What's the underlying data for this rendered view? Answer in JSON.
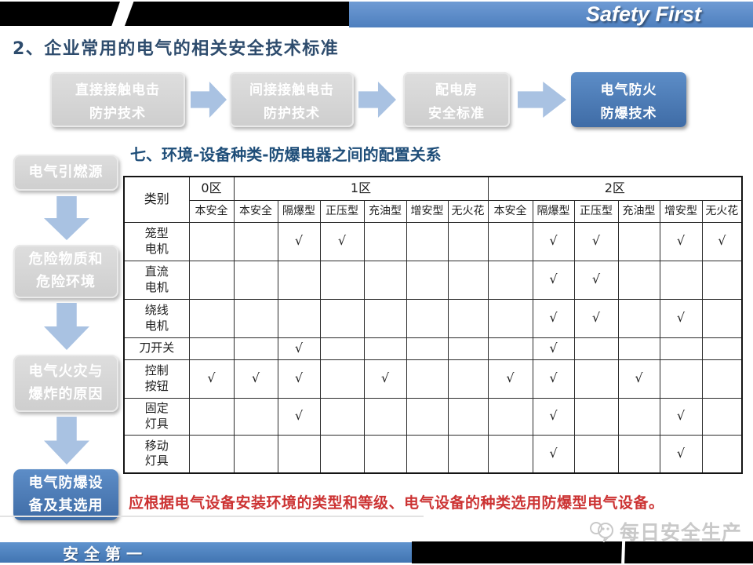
{
  "header": {
    "brand": "Safety First",
    "title": "2、企业常用的电气的相关安全技术标准"
  },
  "flow_steps": [
    {
      "lines": [
        "直接接触电击",
        "防护技术"
      ],
      "highlighted": false
    },
    {
      "lines": [
        "间接接触电击",
        "防护技术"
      ],
      "highlighted": false
    },
    {
      "lines": [
        "配电房",
        "安全标准"
      ],
      "highlighted": false
    },
    {
      "lines": [
        "电气防火",
        "防爆技术"
      ],
      "highlighted": true
    }
  ],
  "sidebar_steps": [
    {
      "lines": [
        "电气引燃源"
      ],
      "highlighted": false
    },
    {
      "lines": [
        "危险物质和",
        "危险环境"
      ],
      "highlighted": false
    },
    {
      "lines": [
        "电气火灾与",
        "爆炸的原因"
      ],
      "highlighted": false
    },
    {
      "lines": [
        "电气防爆设",
        "备及其选用"
      ],
      "highlighted": true
    }
  ],
  "section": {
    "title": "七、环境-设备种类-防爆电器之间的配置关系"
  },
  "table": {
    "corner": "类别",
    "zones": [
      {
        "label": "0区",
        "span": 1
      },
      {
        "label": "1区",
        "span": 6
      },
      {
        "label": "2区",
        "span": 6
      }
    ],
    "subheaders": [
      "本安全",
      "本安全",
      "隔爆型",
      "正压型",
      "充油型",
      "增安型",
      "无火花",
      "本安全",
      "隔爆型",
      "正压型",
      "充油型",
      "增安型",
      "无火花"
    ],
    "check_symbol": "√",
    "rows": [
      {
        "label_lines": [
          "笼型",
          "电机"
        ],
        "checks": [
          0,
          0,
          1,
          1,
          0,
          0,
          0,
          0,
          1,
          1,
          0,
          1,
          1
        ]
      },
      {
        "label_lines": [
          "直流",
          "电机"
        ],
        "checks": [
          0,
          0,
          0,
          0,
          0,
          0,
          0,
          0,
          1,
          1,
          0,
          0,
          0
        ]
      },
      {
        "label_lines": [
          "绕线",
          "电机"
        ],
        "checks": [
          0,
          0,
          0,
          0,
          0,
          0,
          0,
          0,
          1,
          1,
          0,
          1,
          0
        ]
      },
      {
        "label_lines": [
          "刀开关"
        ],
        "checks": [
          0,
          0,
          1,
          0,
          0,
          0,
          0,
          0,
          1,
          0,
          0,
          0,
          0
        ]
      },
      {
        "label_lines": [
          "控制",
          "按钮"
        ],
        "checks": [
          1,
          1,
          1,
          0,
          1,
          0,
          0,
          1,
          1,
          0,
          1,
          0,
          0
        ]
      },
      {
        "label_lines": [
          "固定",
          "灯具"
        ],
        "checks": [
          0,
          0,
          1,
          0,
          0,
          0,
          0,
          0,
          1,
          0,
          0,
          1,
          0
        ]
      },
      {
        "label_lines": [
          "移动",
          "灯具"
        ],
        "checks": [
          0,
          0,
          0,
          0,
          0,
          0,
          0,
          0,
          1,
          0,
          0,
          1,
          0
        ]
      }
    ]
  },
  "note": "应根据电气设备安装环境的类型和等级、电气设备的种类选用防爆型电气设备。",
  "footer": {
    "slogan": "安全第一",
    "watermark": "每日安全生产"
  },
  "colors": {
    "accent_blue": "#4e81bd",
    "banner_blue": "#5588c8",
    "arrow_blue": "#a9c2e2",
    "box_gray": "#d6d6d6",
    "title_navy": "#2e4c6d",
    "section_blue": "#1f4e79",
    "note_red": "#cc3333",
    "watermark_gray": "#c9c9c9"
  }
}
